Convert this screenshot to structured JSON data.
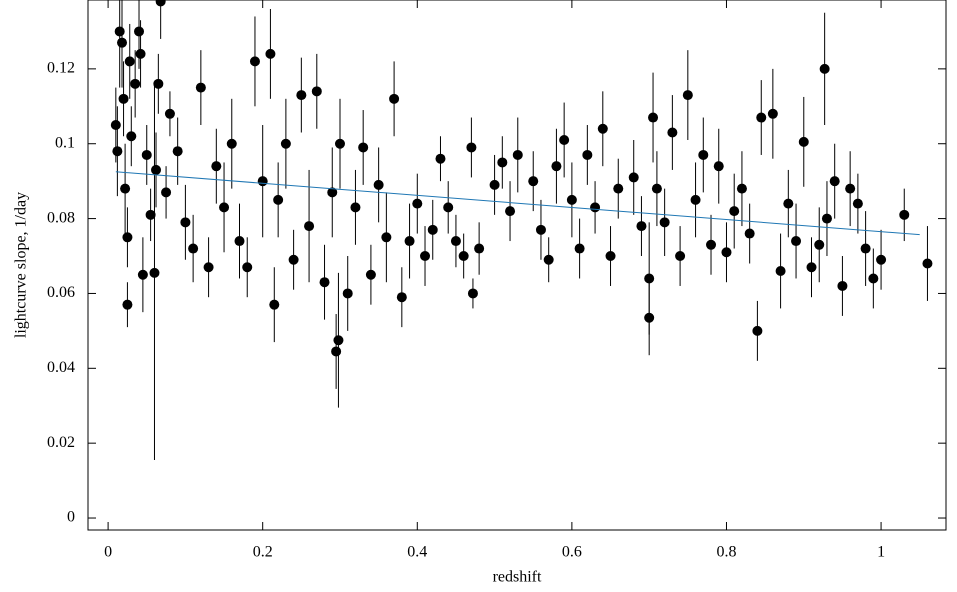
{
  "chart_data": {
    "type": "scatter",
    "xlabel": "redshift",
    "ylabel": "lightcurve slope,  1/day",
    "xlim": [
      -0.026,
      1.084
    ],
    "ylim": [
      -0.0032,
      0.1384
    ],
    "xticks": [
      0,
      0.2,
      0.4,
      0.6,
      0.8,
      1
    ],
    "yticks": [
      0,
      0.02,
      0.04,
      0.06,
      0.08,
      0.1,
      0.12
    ],
    "series": [
      {
        "color": "#000000",
        "x": [
          0.01,
          0.012,
          0.015,
          0.018,
          0.02,
          0.022,
          0.025,
          0.025,
          0.028,
          0.03,
          0.035,
          0.04,
          0.042,
          0.045,
          0.05,
          0.055,
          0.06,
          0.062,
          0.065,
          0.068,
          0.075,
          0.08,
          0.09,
          0.1,
          0.11,
          0.12,
          0.13,
          0.14,
          0.15,
          0.16,
          0.17,
          0.18,
          0.19,
          0.2,
          0.21,
          0.215,
          0.22,
          0.23,
          0.24,
          0.25,
          0.26,
          0.27,
          0.28,
          0.29,
          0.295,
          0.298,
          0.3,
          0.31,
          0.32,
          0.33,
          0.34,
          0.35,
          0.36,
          0.37,
          0.38,
          0.39,
          0.4,
          0.41,
          0.42,
          0.43,
          0.44,
          0.45,
          0.46,
          0.47,
          0.472,
          0.48,
          0.5,
          0.51,
          0.52,
          0.53,
          0.55,
          0.56,
          0.57,
          0.58,
          0.59,
          0.6,
          0.61,
          0.62,
          0.63,
          0.64,
          0.65,
          0.66,
          0.68,
          0.69,
          0.7,
          0.7,
          0.705,
          0.71,
          0.72,
          0.73,
          0.74,
          0.75,
          0.76,
          0.77,
          0.78,
          0.79,
          0.8,
          0.81,
          0.82,
          0.83,
          0.84,
          0.845,
          0.86,
          0.87,
          0.88,
          0.89,
          0.9,
          0.91,
          0.92,
          0.927,
          0.93,
          0.94,
          0.95,
          0.96,
          0.97,
          0.98,
          0.99,
          1.0,
          1.03,
          1.06
        ],
        "values": [
          0.105,
          0.098,
          0.13,
          0.127,
          0.112,
          0.088,
          0.075,
          0.057,
          0.122,
          0.102,
          0.116,
          0.13,
          0.124,
          0.065,
          0.097,
          0.081,
          0.0655,
          0.093,
          0.116,
          0.138,
          0.087,
          0.108,
          0.098,
          0.079,
          0.072,
          0.115,
          0.067,
          0.094,
          0.083,
          0.1,
          0.074,
          0.067,
          0.122,
          0.09,
          0.124,
          0.057,
          0.085,
          0.1,
          0.069,
          0.113,
          0.078,
          0.114,
          0.063,
          0.087,
          0.0445,
          0.0475,
          0.1,
          0.06,
          0.083,
          0.099,
          0.065,
          0.089,
          0.075,
          0.112,
          0.059,
          0.074,
          0.084,
          0.07,
          0.077,
          0.096,
          0.083,
          0.074,
          0.07,
          0.099,
          0.06,
          0.072,
          0.089,
          0.095,
          0.082,
          0.097,
          0.09,
          0.077,
          0.069,
          0.094,
          0.101,
          0.085,
          0.072,
          0.097,
          0.083,
          0.104,
          0.07,
          0.088,
          0.091,
          0.078,
          0.0535,
          0.064,
          0.107,
          0.088,
          0.079,
          0.103,
          0.07,
          0.113,
          0.085,
          0.097,
          0.073,
          0.094,
          0.071,
          0.082,
          0.088,
          0.076,
          0.05,
          0.107,
          0.108,
          0.066,
          0.084,
          0.074,
          0.1005,
          0.067,
          0.073,
          0.12,
          0.08,
          0.09,
          0.062,
          0.088,
          0.084,
          0.072,
          0.064,
          0.069,
          0.081,
          0.068
        ],
        "errors": [
          0.01,
          0.012,
          0.015,
          0.012,
          0.01,
          0.012,
          0.008,
          0.006,
          0.01,
          0.008,
          0.009,
          0.01,
          0.009,
          0.01,
          0.008,
          0.007,
          0.05,
          0.01,
          0.008,
          0.01,
          0.007,
          0.006,
          0.009,
          0.01,
          0.009,
          0.01,
          0.008,
          0.01,
          0.012,
          0.012,
          0.01,
          0.008,
          0.012,
          0.015,
          0.012,
          0.01,
          0.01,
          0.012,
          0.008,
          0.01,
          0.015,
          0.01,
          0.01,
          0.012,
          0.01,
          0.018,
          0.012,
          0.01,
          0.01,
          0.01,
          0.008,
          0.01,
          0.012,
          0.01,
          0.008,
          0.01,
          0.008,
          0.008,
          0.008,
          0.006,
          0.007,
          0.007,
          0.006,
          0.008,
          0.004,
          0.007,
          0.008,
          0.007,
          0.008,
          0.01,
          0.008,
          0.008,
          0.006,
          0.01,
          0.01,
          0.01,
          0.008,
          0.008,
          0.007,
          0.01,
          0.008,
          0.008,
          0.01,
          0.008,
          0.01,
          0.015,
          0.012,
          0.01,
          0.009,
          0.01,
          0.008,
          0.012,
          0.01,
          0.01,
          0.008,
          0.01,
          0.008,
          0.01,
          0.01,
          0.008,
          0.008,
          0.01,
          0.012,
          0.01,
          0.009,
          0.01,
          0.012,
          0.008,
          0.01,
          0.015,
          0.01,
          0.01,
          0.008,
          0.01,
          0.008,
          0.01,
          0.008,
          0.008,
          0.007,
          0.01
        ]
      },
      {
        "type": "line",
        "color": "#1f77b4",
        "x": [
          0.01,
          1.05
        ],
        "values": [
          0.0925,
          0.0757
        ]
      }
    ]
  }
}
